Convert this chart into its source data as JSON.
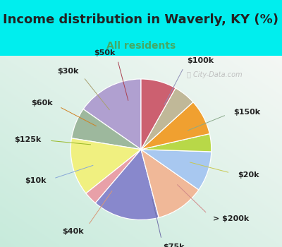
{
  "title": "Income distribution in Waverly, KY (%)",
  "subtitle": "All residents",
  "title_color": "#222222",
  "subtitle_color": "#44aa66",
  "bg_cyan": "#00eeee",
  "labels": [
    "$100k",
    "$150k",
    "$20k",
    "> $200k",
    "$75k",
    "$40k",
    "$10k",
    "$125k",
    "$60k",
    "$30k",
    "$50k"
  ],
  "values": [
    15,
    7,
    13,
    3,
    15,
    11,
    9,
    4,
    8,
    5,
    8
  ],
  "colors": [
    "#b0a0d0",
    "#9db89d",
    "#f0f080",
    "#e8a0a8",
    "#8888cc",
    "#f0b898",
    "#a8c8f0",
    "#b8d848",
    "#f0a030",
    "#c0b898",
    "#cc6070"
  ],
  "line_colors": [
    "#9090b8",
    "#8aaa8a",
    "#c8c850",
    "#d08888",
    "#7070a8",
    "#d89878",
    "#88a8d8",
    "#98b828",
    "#d08020",
    "#a8a070",
    "#aa4050"
  ],
  "startangle": 90,
  "label_fontsize": 8,
  "title_fontsize": 13,
  "subtitle_fontsize": 10,
  "watermark": "City-Data.com"
}
